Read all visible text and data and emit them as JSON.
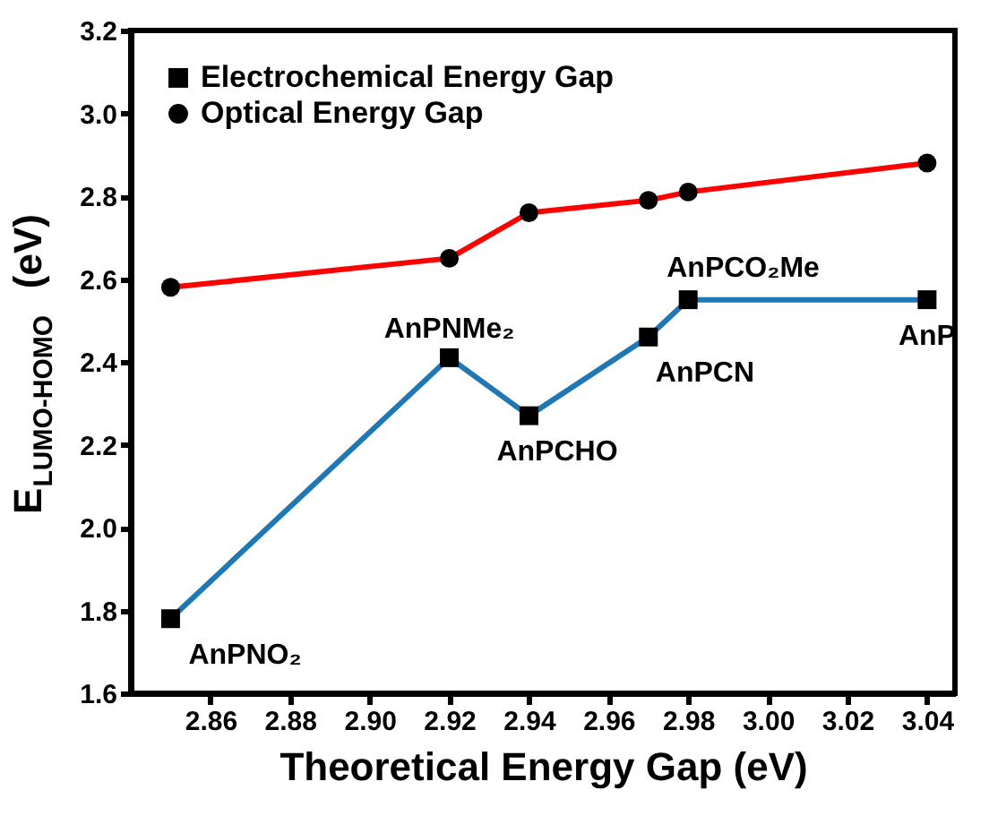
{
  "chart_data": {
    "type": "line",
    "xlabel": "Theoretical Energy Gap (eV)",
    "ylabel": "E$_{LUMO-HOMO}$ (eV)",
    "x": [
      2.85,
      2.92,
      2.94,
      2.97,
      2.98,
      3.04
    ],
    "series": [
      {
        "name": "Electrochemical Energy Gap",
        "color": "#1f77b4",
        "marker": "square",
        "values": [
          1.78,
          2.41,
          2.27,
          2.46,
          2.55,
          2.55
        ]
      },
      {
        "name": "Optical Energy Gap",
        "color": "#ff0000",
        "marker": "circle",
        "values": [
          2.58,
          2.65,
          2.76,
          2.79,
          2.81,
          2.88
        ]
      }
    ],
    "xlim": [
      2.84,
      3.047
    ],
    "xticks": [
      {
        "value": 2.86,
        "label": "2.86"
      },
      {
        "value": 2.88,
        "label": "2.88"
      },
      {
        "value": 2.9,
        "label": "2.90"
      },
      {
        "value": 2.92,
        "label": "2.92"
      },
      {
        "value": 2.94,
        "label": "2.94"
      },
      {
        "value": 2.96,
        "label": "2.96"
      },
      {
        "value": 2.98,
        "label": "2.98"
      },
      {
        "value": 3.0,
        "label": "3.00"
      },
      {
        "value": 3.02,
        "label": "3.02"
      },
      {
        "value": 3.04,
        "label": "3.04"
      }
    ],
    "ylim": [
      1.6,
      3.2
    ],
    "yticks": [
      1.6,
      1.8,
      {
        "value": 2.0,
        "label": "2.0"
      },
      2.2,
      2.4,
      2.6,
      2.8,
      {
        "value": 3.0,
        "label": "3.0"
      },
      3.2
    ],
    "annotations": [
      {
        "text": "AnPNO₂",
        "x": 2.85,
        "y": 1.78
      },
      {
        "text": "AnPNMe₂",
        "x": 2.92,
        "y": 2.41
      },
      {
        "text": "AnPCHO",
        "x": 2.94,
        "y": 2.27
      },
      {
        "text": "AnPCN",
        "x": 2.97,
        "y": 2.46
      },
      {
        "text": "AnPCO₂Me",
        "x": 2.98,
        "y": 2.55
      },
      {
        "text": "AnP",
        "x": 3.04,
        "y": 2.55
      }
    ],
    "legend": "top left",
    "grid": false,
    "line_style": "solid"
  }
}
